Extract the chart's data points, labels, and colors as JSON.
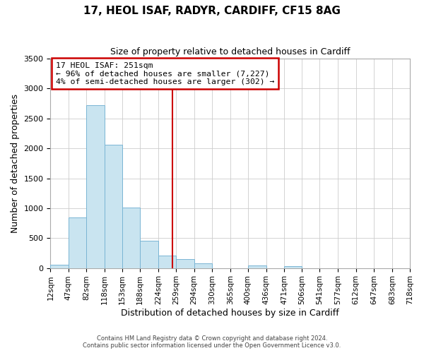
{
  "title": "17, HEOL ISAF, RADYR, CARDIFF, CF15 8AG",
  "subtitle": "Size of property relative to detached houses in Cardiff",
  "xlabel": "Distribution of detached houses by size in Cardiff",
  "ylabel": "Number of detached properties",
  "bar_edges": [
    12,
    47,
    82,
    118,
    153,
    188,
    224,
    259,
    294,
    330,
    365,
    400,
    436,
    471,
    506,
    541,
    577,
    612,
    647,
    683,
    718
  ],
  "bar_heights": [
    50,
    850,
    2720,
    2060,
    1010,
    460,
    210,
    145,
    80,
    0,
    0,
    45,
    0,
    30,
    0,
    0,
    0,
    0,
    0,
    0
  ],
  "bar_color": "#c9e4f0",
  "bar_edge_color": "#7ab5d4",
  "vline_x": 251,
  "vline_color": "#cc0000",
  "ylim": [
    0,
    3500
  ],
  "xlim": [
    12,
    718
  ],
  "annotation_title": "17 HEOL ISAF: 251sqm",
  "annotation_line1": "← 96% of detached houses are smaller (7,227)",
  "annotation_line2": "4% of semi-detached houses are larger (302) →",
  "annotation_box_color": "#ffffff",
  "annotation_box_edge_color": "#cc0000",
  "footer_line1": "Contains HM Land Registry data © Crown copyright and database right 2024.",
  "footer_line2": "Contains public sector information licensed under the Open Government Licence v3.0.",
  "tick_labels": [
    "12sqm",
    "47sqm",
    "82sqm",
    "118sqm",
    "153sqm",
    "188sqm",
    "224sqm",
    "259sqm",
    "294sqm",
    "330sqm",
    "365sqm",
    "400sqm",
    "436sqm",
    "471sqm",
    "506sqm",
    "541sqm",
    "577sqm",
    "612sqm",
    "647sqm",
    "683sqm",
    "718sqm"
  ],
  "grid_color": "#cccccc",
  "background_color": "#ffffff",
  "yticks": [
    0,
    500,
    1000,
    1500,
    2000,
    2500,
    3000,
    3500
  ]
}
